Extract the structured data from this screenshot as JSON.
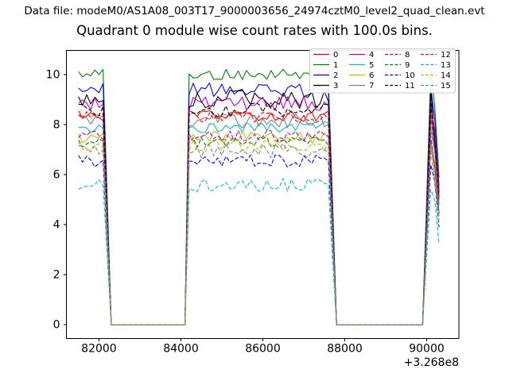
{
  "figure": {
    "background": "#ffffff",
    "axis_color": "#000000",
    "legend_border_color": "#cccccc",
    "legend_background": "rgba(255,255,255,0.9)"
  },
  "chart_data": {
    "type": "line",
    "suptitle": "Data file: modeM0/AS1A08_003T17_9000003656_24974cztM0_level2_quad_clean.evt",
    "title": "Quadrant 0 module wise count rates with 100.0s bins.",
    "xlabel": "",
    "ylabel": "",
    "grid": false,
    "legend_position": "upper right",
    "legend_ncol": 4,
    "x_offset_text": "+3.268e8",
    "xlim": [
      81205,
      90786
    ],
    "ylim": [
      -0.55,
      10.97
    ],
    "xticks": [
      {
        "value": 82000,
        "label": "82000"
      },
      {
        "value": 84000,
        "label": "84000"
      },
      {
        "value": 86000,
        "label": "86000"
      },
      {
        "value": 88000,
        "label": "88000"
      },
      {
        "value": 90000,
        "label": "90000"
      }
    ],
    "yticks": [
      {
        "value": 0,
        "label": "0"
      },
      {
        "value": 2,
        "label": "2"
      },
      {
        "value": 4,
        "label": "4"
      },
      {
        "value": 6,
        "label": "6"
      },
      {
        "value": 8,
        "label": "8"
      },
      {
        "value": 10,
        "label": "10"
      }
    ],
    "x_start": 81500,
    "x_end": 90300,
    "bin_seconds": 100,
    "factor_breakpoints": [
      [
        81500,
        1
      ],
      [
        82150,
        1
      ],
      [
        82250,
        0
      ],
      [
        84100,
        0
      ],
      [
        84200,
        1
      ],
      [
        87650,
        1
      ],
      [
        87750,
        0
      ],
      [
        89900,
        0
      ],
      [
        90000,
        0.5
      ],
      [
        90100,
        1
      ],
      [
        90200,
        0.85
      ],
      [
        90300,
        0.6
      ]
    ],
    "series": [
      {
        "label": "0",
        "color": "#ff0000",
        "dash": false,
        "level": 8.35,
        "amp": 0.22
      },
      {
        "label": "1",
        "color": "#008000",
        "dash": false,
        "level": 10.0,
        "amp": 0.22
      },
      {
        "label": "2",
        "color": "#0000ff",
        "dash": false,
        "level": 9.4,
        "amp": 0.28
      },
      {
        "label": "3",
        "color": "#000000",
        "dash": false,
        "level": 9.05,
        "amp": 0.4
      },
      {
        "label": "4",
        "color": "#bf00bf",
        "dash": false,
        "level": 8.85,
        "amp": 0.28
      },
      {
        "label": "5",
        "color": "#00bfbf",
        "dash": false,
        "level": 7.9,
        "amp": 0.22
      },
      {
        "label": "6",
        "color": "#bfbf00",
        "dash": false,
        "level": 7.5,
        "amp": 0.25
      },
      {
        "label": "7",
        "color": "#808080",
        "dash": false,
        "level": 8.15,
        "amp": 0.3
      },
      {
        "label": "8",
        "color": "#ff0000",
        "dash": true,
        "level": 8.3,
        "amp": 0.22
      },
      {
        "label": "9",
        "color": "#008000",
        "dash": true,
        "level": 7.3,
        "amp": 0.2
      },
      {
        "label": "10",
        "color": "#0000ff",
        "dash": true,
        "level": 6.55,
        "amp": 0.25
      },
      {
        "label": "11",
        "color": "#000000",
        "dash": true,
        "level": 8.6,
        "amp": 0.3
      },
      {
        "label": "12",
        "color": "#bf00bf",
        "dash": true,
        "level": 7.55,
        "amp": 0.22
      },
      {
        "label": "13",
        "color": "#00bfbf",
        "dash": true,
        "level": 5.6,
        "amp": 0.28
      },
      {
        "label": "14",
        "color": "#bfbf00",
        "dash": true,
        "level": 7.15,
        "amp": 0.25
      },
      {
        "label": "15",
        "color": "#808080",
        "dash": true,
        "level": 6.95,
        "amp": 0.3
      }
    ]
  }
}
